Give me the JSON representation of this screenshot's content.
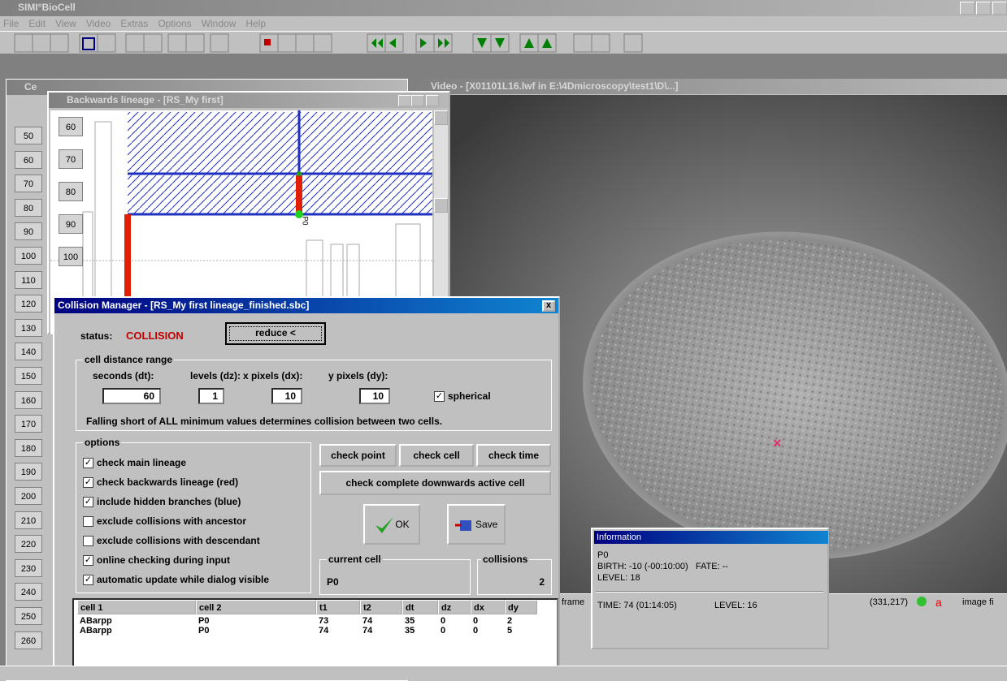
{
  "app": {
    "title": "SIMI°BioCell",
    "menu": [
      "File",
      "Edit",
      "View",
      "Video",
      "Extras",
      "Options",
      "Window",
      "Help"
    ]
  },
  "cells_window": {
    "title": "Ce",
    "ruler": [
      50,
      60,
      70,
      80,
      90,
      100,
      110,
      120,
      130,
      140,
      150,
      160,
      170,
      180,
      190,
      200,
      210,
      220,
      230,
      240,
      250,
      260
    ]
  },
  "lineage_window": {
    "title": "Backwards lineage - [RS_My first]",
    "ruler": [
      60,
      70,
      80,
      90,
      100
    ],
    "cell_label": "P0"
  },
  "video_window": {
    "title": "Video - [X01101L16.lwf in E:\\4Dmicroscopy\\test1\\D\\...]",
    "status": {
      "frame": "frame",
      "coords": "(331,217)",
      "marker": "a",
      "image": "image fi"
    }
  },
  "collision_manager": {
    "title": "Collision Manager - [RS_My first lineage_finished.sbc]",
    "status_label": "status:",
    "status": "COLLISION",
    "reduce": "reduce <",
    "range_title": "cell distance range",
    "fields": [
      {
        "label": "seconds (dt):",
        "value": 60
      },
      {
        "label": "levels (dz):",
        "value": 1
      },
      {
        "label": "x pixels (dx):",
        "value": 10
      },
      {
        "label": "y pixels (dy):",
        "value": 10
      }
    ],
    "spherical": {
      "label": "spherical",
      "checked": true
    },
    "note": "Falling short of ALL minimum values determines collision between two cells.",
    "options_title": "options",
    "options": [
      {
        "label": "check main lineage",
        "checked": true
      },
      {
        "label": "check backwards lineage (red)",
        "checked": true
      },
      {
        "label": "include hidden branches (blue)",
        "checked": true
      },
      {
        "label": "exclude collisions with ancestor",
        "checked": false
      },
      {
        "label": "exclude collisions with descendant",
        "checked": false
      },
      {
        "label": "online checking during input",
        "checked": true
      },
      {
        "label": "automatic update while dialog visible",
        "checked": true
      }
    ],
    "buttons": {
      "check_point": "check point",
      "check_cell": "check cell",
      "check_time": "check time",
      "check_complete": "check complete downwards active cell",
      "ok": "OK",
      "save": "Save"
    },
    "current_cell_label": "current cell",
    "current_cell": "P0",
    "collisions_label": "collisions",
    "collisions": 2,
    "table": {
      "headers": [
        "cell 1",
        "cell 2",
        "t1",
        "t2",
        "dt",
        "dz",
        "dx",
        "dy"
      ],
      "rows": [
        [
          "ABarpp",
          "P0",
          73,
          74,
          35,
          0,
          0,
          2
        ],
        [
          "ABarpp",
          "P0",
          74,
          74,
          35,
          0,
          0,
          5
        ]
      ]
    }
  },
  "information": {
    "title": "Information",
    "cell": "P0",
    "birth": "BIRTH: -10 (-00:10:00)   FATE: --",
    "level": "LEVEL: 18",
    "time": "TIME: 74 (01:14:05)",
    "level2": "LEVEL: 16"
  }
}
